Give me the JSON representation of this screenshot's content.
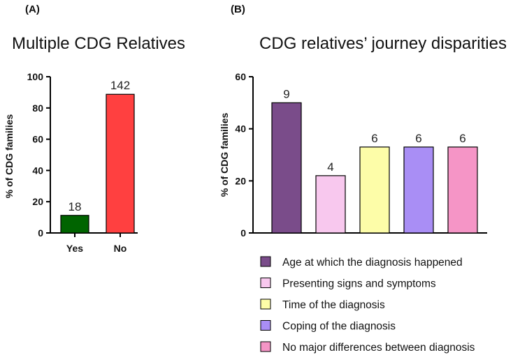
{
  "chart_data": [
    {
      "panel": "(A)",
      "type": "bar",
      "title": "Multiple CDG Relatives",
      "xlabel": "",
      "ylabel": "% of CDG families",
      "ylim": [
        0,
        100
      ],
      "yticks": [
        0,
        20,
        40,
        60,
        80,
        100
      ],
      "grid": false,
      "categories": [
        "Yes",
        "No"
      ],
      "values": [
        11.25,
        88.75
      ],
      "data_labels": [
        "18",
        "142"
      ],
      "colors": [
        "#006400",
        "#ff4040"
      ]
    },
    {
      "panel": "(B)",
      "type": "bar",
      "title": "CDG relatives’ journey disparities",
      "xlabel": "",
      "ylabel": "% of CDG families",
      "ylim": [
        0,
        60
      ],
      "yticks": [
        0,
        20,
        40,
        60
      ],
      "grid": false,
      "legend_position": "bottom",
      "categories": [
        "Age at which the diagnosis happened",
        "Presenting signs and symptoms",
        "Time of the diagnosis",
        "Coping of the diagnosis",
        "No major differences between diagnosis"
      ],
      "values": [
        50,
        22,
        33,
        33,
        33
      ],
      "data_labels": [
        "9",
        "4",
        "6",
        "6",
        "6"
      ],
      "colors": [
        "#7a4c8a",
        "#f8c8ee",
        "#fdfda8",
        "#a98ef5",
        "#f595c6"
      ]
    }
  ]
}
